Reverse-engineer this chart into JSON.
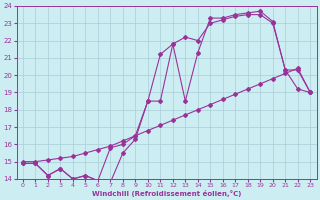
{
  "xlabel": "Windchill (Refroidissement éolien,°C)",
  "xlim": [
    -0.5,
    23.5
  ],
  "ylim": [
    14,
    24
  ],
  "yticks": [
    14,
    15,
    16,
    17,
    18,
    19,
    20,
    21,
    22,
    23,
    24
  ],
  "xticks": [
    0,
    1,
    2,
    3,
    4,
    5,
    6,
    7,
    8,
    9,
    10,
    11,
    12,
    13,
    14,
    15,
    16,
    17,
    18,
    19,
    20,
    21,
    22,
    23
  ],
  "bg_color": "#cceef2",
  "line_color": "#993399",
  "grid_color": "#aaccd8",
  "line1_x": [
    0,
    1,
    2,
    3,
    4,
    5,
    6,
    7,
    8,
    9,
    10,
    11,
    12,
    13,
    14,
    15,
    16,
    17,
    18,
    19,
    20,
    21,
    22,
    23
  ],
  "line1_y": [
    14.9,
    14.9,
    14.2,
    14.6,
    14.0,
    14.2,
    13.9,
    13.8,
    15.5,
    16.3,
    18.5,
    21.2,
    21.8,
    18.5,
    21.3,
    23.3,
    23.3,
    23.5,
    23.6,
    23.7,
    23.1,
    20.3,
    19.2,
    19.0
  ],
  "line2_x": [
    0,
    1,
    2,
    3,
    4,
    5,
    6,
    7,
    8,
    9,
    10,
    11,
    12,
    13,
    14,
    15,
    16,
    17,
    18,
    19,
    20,
    21,
    22,
    23
  ],
  "line2_y": [
    14.9,
    14.9,
    14.2,
    14.6,
    14.0,
    14.2,
    13.9,
    15.8,
    16.0,
    16.5,
    18.5,
    18.5,
    21.8,
    22.2,
    22.0,
    23.0,
    23.2,
    23.4,
    23.5,
    23.5,
    23.0,
    20.3,
    20.3,
    19.0
  ],
  "line3_x": [
    0,
    1,
    2,
    3,
    4,
    5,
    6,
    7,
    8,
    9,
    10,
    11,
    12,
    13,
    14,
    15,
    16,
    17,
    18,
    19,
    20,
    21,
    22,
    23
  ],
  "line3_y": [
    15.0,
    15.0,
    15.1,
    15.2,
    15.3,
    15.5,
    15.7,
    15.9,
    16.2,
    16.5,
    16.8,
    17.1,
    17.4,
    17.7,
    18.0,
    18.3,
    18.6,
    18.9,
    19.2,
    19.5,
    19.8,
    20.1,
    20.4,
    19.0
  ]
}
